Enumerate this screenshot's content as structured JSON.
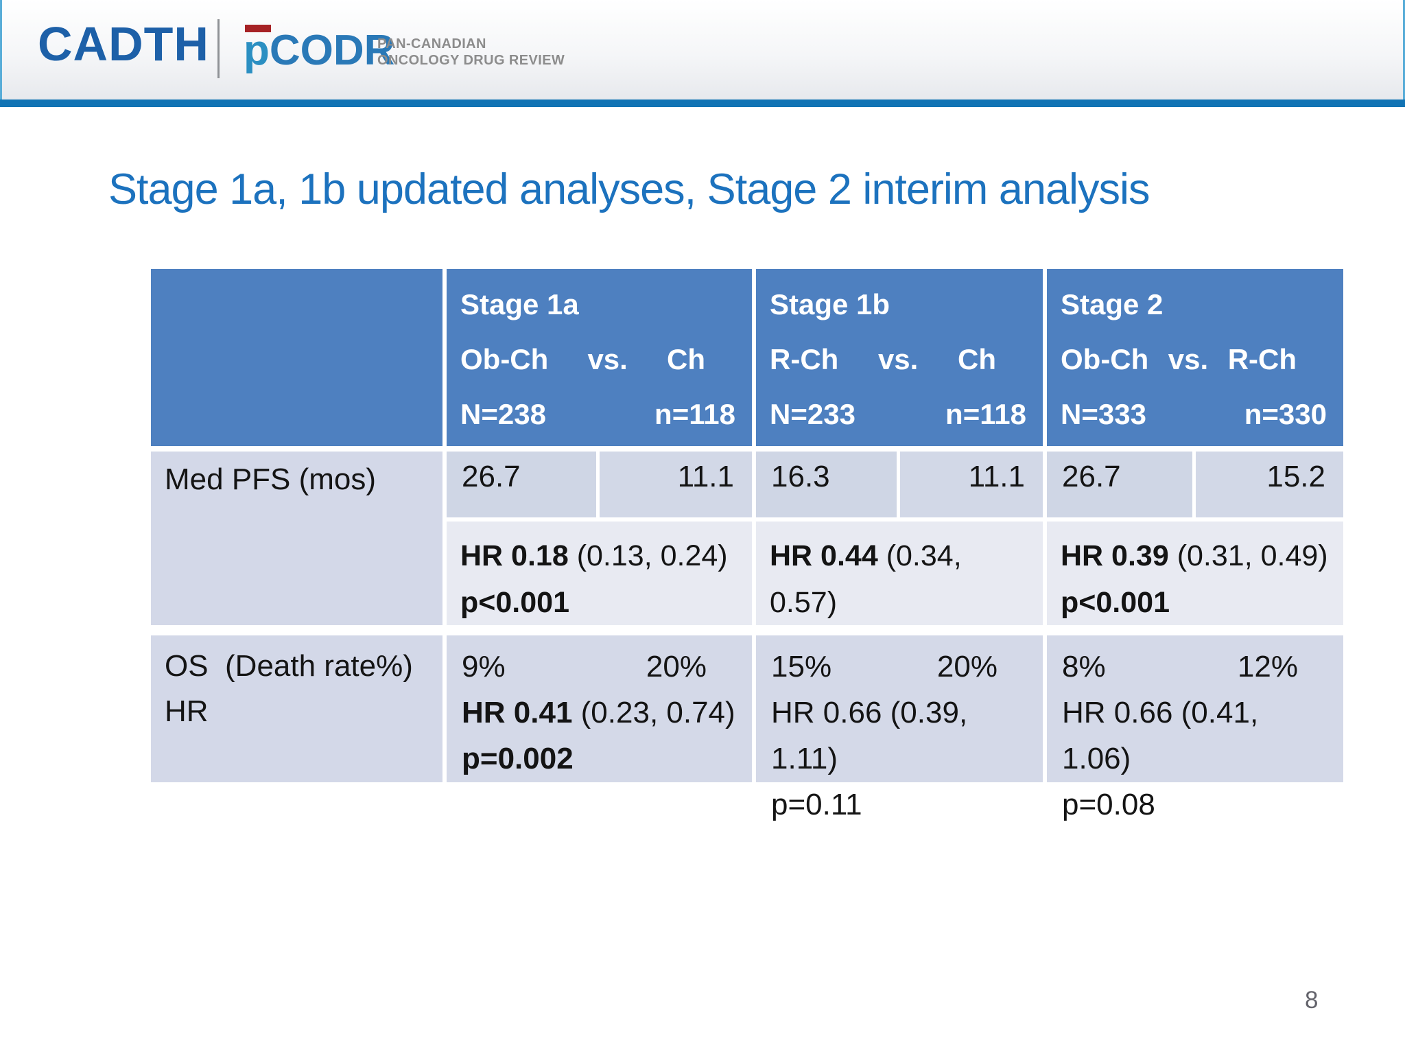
{
  "header": {
    "cadth": "CADTH",
    "pcodr_p": "p",
    "pcodr_rest": "CODR",
    "tagline_line1": "PAN-CANADIAN",
    "tagline_line2": "ONCOLOGY DRUG REVIEW"
  },
  "title": "Stage 1a, 1b updated analyses, Stage 2 interim analysis",
  "page_number": "8",
  "colors": {
    "table_header_blue": "#4e80c0",
    "accent_bar_blue": "#1173b4",
    "title_blue": "#1c72be",
    "cell_label": "#d3d8e8",
    "cell_value": "#cfd6e5",
    "cell_hr": "#e8eaf2",
    "logo_red": "#a62225",
    "logo_blue": "#1d60a8"
  },
  "table": {
    "row_labels": {
      "pfs": "Med PFS (mos)",
      "os_line1": "OS  (Death rate%)",
      "os_line2": "HR"
    },
    "columns": [
      {
        "stage": "Stage 1a",
        "arm1": "Ob-Ch",
        "vs": "vs.",
        "arm2": "Ch",
        "n1": "N=238",
        "n2": "n=118",
        "pfs1": "26.7",
        "pfs2": "11.1",
        "pfs_hr": "HR 0.18",
        "pfs_hr_ci": "(0.13, 0.24)",
        "pfs_p": "p<0.001",
        "os1": "9%",
        "os2": "20%",
        "os_hr": "HR 0.41",
        "os_hr_ci": "(0.23, 0.74)",
        "os_p": "p=0.002"
      },
      {
        "stage": "Stage 1b",
        "arm1": "R-Ch",
        "vs": "vs.",
        "arm2": "Ch",
        "n1": "N=233",
        "n2": "n=118",
        "pfs1": "16.3",
        "pfs2": "11.1",
        "pfs_hr": "HR 0.44",
        "pfs_hr_ci": "(0.34, 0.57)",
        "pfs_p": "p<0.001",
        "os1": "15%",
        "os2": "20%",
        "os_hr": "HR 0.66",
        "os_hr_ci": "(0.39, 1.11)",
        "os_p": "p=0.11"
      },
      {
        "stage": "Stage 2",
        "arm1": "Ob-Ch",
        "vs": "vs.",
        "arm2": "R-Ch",
        "n1": "N=333",
        "n2": "n=330",
        "pfs1": "26.7",
        "pfs2": "15.2",
        "pfs_hr": "HR 0.39",
        "pfs_hr_ci": "(0.31, 0.49)",
        "pfs_p": "p<0.001",
        "os1": "8%",
        "os2": "12%",
        "os_hr": "HR 0.66",
        "os_hr_ci": "(0.41, 1.06)",
        "os_p": "p=0.08"
      }
    ]
  }
}
